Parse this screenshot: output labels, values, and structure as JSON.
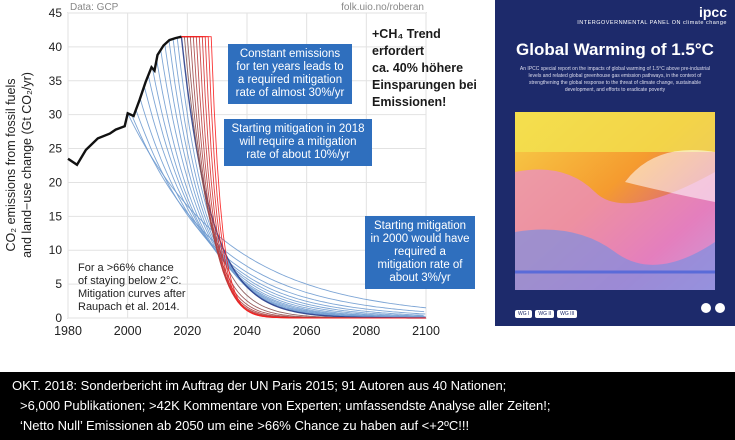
{
  "chart_data": {
    "type": "line",
    "xlim": [
      1980,
      2100
    ],
    "ylim": [
      0,
      45
    ],
    "xticks": [
      1980,
      2000,
      2020,
      2040,
      2060,
      2080,
      2100
    ],
    "yticks": [
      0,
      5,
      10,
      15,
      20,
      25,
      30,
      35,
      40,
      45
    ],
    "ylabel_line1": "CO₂ emissions from fossil fuels",
    "ylabel_line2": "and land−use change (Gt CO₂/yr)",
    "source_left": "Data: GCP",
    "source_right": "folk.uio.no/roberan",
    "historical": {
      "x": [
        1980,
        1983,
        1986,
        1990,
        1994,
        1996,
        1999,
        2000,
        2002,
        2004,
        2006,
        2008,
        2009,
        2010,
        2012,
        2014,
        2016,
        2018
      ],
      "y": [
        23.5,
        22.6,
        24.8,
        26.5,
        27.2,
        27.8,
        28.3,
        30.2,
        29.8,
        32.2,
        34.8,
        37.0,
        36.5,
        38.8,
        40.2,
        41.0,
        41.3,
        41.5
      ]
    },
    "scenario_groups": [
      {
        "start_year": 2000,
        "start_value": 30.2,
        "mitigation_rate": 0.03,
        "label": "2000 start"
      },
      {
        "start_year": 2018,
        "start_value": 41.5,
        "mitigation_rate": 0.1,
        "label": "2018 start"
      },
      {
        "start_year": 2028,
        "start_value": 41.5,
        "mitigation_rate": 0.3,
        "label": "constant emissions for ten years"
      }
    ],
    "annotation_bottom_left": [
      "For a >66% chance",
      "of staying below 2°C.",
      "Mitigation curves after",
      "Raupach et al. 2014."
    ]
  },
  "callouts": {
    "constant": "Constant emissions for ten years leads to a required mitigation rate of almost 30%/yr",
    "start2018": "Starting mitigation in 2018 will require a mitigation rate of about 10%/yr",
    "start2000": "Starting mitigation in 2000 would have required a mitigation rate of about 3%/yr"
  },
  "german_note": [
    "+CH₄ Trend",
    "erfordert",
    "ca. 40% höhere",
    "Einsparungen bei",
    "Emissionen!"
  ],
  "report": {
    "logo": "ipcc",
    "org": "INTERGOVERNMENTAL PANEL ON climate change",
    "title": "Global Warming of 1.5°C",
    "subtitle": "An IPCC special report on the impacts of global warming of 1.5°C above pre-industrial levels and related global greenhouse gas emission pathways, in the context of strengthening the global response to the threat of climate change, sustainable development, and efforts to eradicate poverty",
    "wg1": "WG I",
    "wg2": "WG II",
    "wg3": "WG III"
  },
  "caption": {
    "line1": "OKT. 2018: Sonderbericht im Auftrag der UN Paris 2015; 91 Autoren aus 40 Nationen;",
    "line2": ">6,000 Publikationen; >42K Kommentare von Experten; umfassendste Analyse aller Zeiten!;",
    "line3": "‘Netto Null’ Emissionen ab 2050 um eine >66% Chance zu haben auf <+2ºC!!!"
  }
}
